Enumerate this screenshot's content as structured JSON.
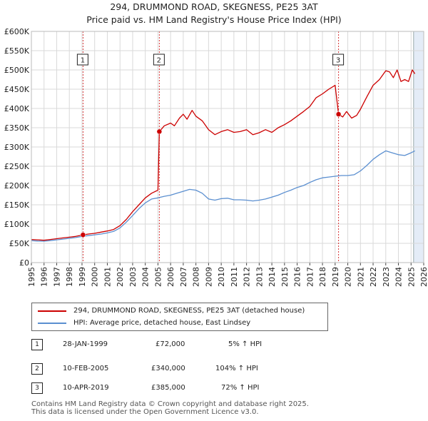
{
  "title_line1": "294, DRUMMOND ROAD, SKEGNESS, PE25 3AT",
  "title_line2": "Price paid vs. HM Land Registry's House Price Index (HPI)",
  "legend": {
    "series1": "294, DRUMMOND ROAD, SKEGNESS, PE25 3AT (detached house)",
    "series2": "HPI: Average price, detached house, East Lindsey"
  },
  "colors": {
    "property": "#cc0000",
    "hpi": "#5b8fd0",
    "grid": "#d9d9d9",
    "highlight": "#e4ecf7"
  },
  "transactions": [
    {
      "num": "1",
      "date": "28-JAN-1999",
      "price": "£72,000",
      "hpi": "5% ↑ HPI"
    },
    {
      "num": "2",
      "date": "10-FEB-2005",
      "price": "£340,000",
      "hpi": "104% ↑ HPI"
    },
    {
      "num": "3",
      "date": "10-APR-2019",
      "price": "£385,000",
      "hpi": "72% ↑ HPI"
    }
  ],
  "footer_line1": "Contains HM Land Registry data © Crown copyright and database right 2025.",
  "footer_line2": "This data is licensed under the Open Government Licence v3.0.",
  "chart_data": {
    "type": "line",
    "title": "294, DRUMMOND ROAD, SKEGNESS, PE25 3AT — Price paid vs. HM Land Registry's House Price Index (HPI)",
    "xlim": [
      1995,
      2026
    ],
    "ylim": [
      0,
      600000
    ],
    "x_ticks": [
      "1995",
      "1996",
      "1997",
      "1998",
      "1999",
      "2000",
      "2001",
      "2002",
      "2003",
      "2004",
      "2005",
      "2006",
      "2007",
      "2008",
      "2009",
      "2010",
      "2011",
      "2012",
      "2013",
      "2014",
      "2015",
      "2016",
      "2017",
      "2018",
      "2019",
      "2020",
      "2021",
      "2022",
      "2023",
      "2024",
      "2025",
      "2026"
    ],
    "y_ticks": [
      {
        "value": 0,
        "label": "£0"
      },
      {
        "value": 50000,
        "label": "£50K"
      },
      {
        "value": 100000,
        "label": "£100K"
      },
      {
        "value": 150000,
        "label": "£150K"
      },
      {
        "value": 200000,
        "label": "£200K"
      },
      {
        "value": 250000,
        "label": "£250K"
      },
      {
        "value": 300000,
        "label": "£300K"
      },
      {
        "value": 350000,
        "label": "£350K"
      },
      {
        "value": 400000,
        "label": "£400K"
      },
      {
        "value": 450000,
        "label": "£450K"
      },
      {
        "value": 500000,
        "label": "£500K"
      },
      {
        "value": 550000,
        "label": "£550K"
      },
      {
        "value": 600000,
        "label": "£600K"
      }
    ],
    "highlight_from": 2025.2,
    "markers": [
      {
        "label": "1",
        "x": 1999.08,
        "y": 72000
      },
      {
        "label": "2",
        "x": 2005.11,
        "y": 340000
      },
      {
        "label": "3",
        "x": 2019.27,
        "y": 385000
      }
    ],
    "series": [
      {
        "name": "294, DRUMMOND ROAD, SKEGNESS, PE25 3AT (detached house)",
        "color": "#cc0000",
        "points": [
          [
            1995.0,
            60000
          ],
          [
            1995.5,
            59000
          ],
          [
            1996.0,
            58000
          ],
          [
            1996.5,
            60000
          ],
          [
            1997.0,
            62000
          ],
          [
            1997.5,
            64000
          ],
          [
            1998.0,
            66000
          ],
          [
            1998.5,
            68000
          ],
          [
            1999.08,
            72000
          ],
          [
            1999.5,
            74000
          ],
          [
            2000.0,
            76000
          ],
          [
            2000.5,
            79000
          ],
          [
            2001.0,
            82000
          ],
          [
            2001.5,
            86000
          ],
          [
            2002.0,
            96000
          ],
          [
            2002.5,
            112000
          ],
          [
            2003.0,
            132000
          ],
          [
            2003.5,
            150000
          ],
          [
            2004.0,
            168000
          ],
          [
            2004.5,
            180000
          ],
          [
            2005.0,
            188000
          ],
          [
            2005.11,
            340000
          ],
          [
            2005.5,
            355000
          ],
          [
            2006.0,
            362000
          ],
          [
            2006.3,
            355000
          ],
          [
            2006.7,
            375000
          ],
          [
            2007.0,
            385000
          ],
          [
            2007.3,
            372000
          ],
          [
            2007.7,
            395000
          ],
          [
            2008.0,
            380000
          ],
          [
            2008.5,
            368000
          ],
          [
            2009.0,
            345000
          ],
          [
            2009.5,
            332000
          ],
          [
            2010.0,
            340000
          ],
          [
            2010.5,
            345000
          ],
          [
            2011.0,
            338000
          ],
          [
            2011.5,
            340000
          ],
          [
            2012.0,
            345000
          ],
          [
            2012.5,
            332000
          ],
          [
            2013.0,
            337000
          ],
          [
            2013.5,
            345000
          ],
          [
            2014.0,
            338000
          ],
          [
            2014.5,
            350000
          ],
          [
            2015.0,
            358000
          ],
          [
            2015.5,
            368000
          ],
          [
            2016.0,
            380000
          ],
          [
            2016.5,
            392000
          ],
          [
            2017.0,
            405000
          ],
          [
            2017.5,
            428000
          ],
          [
            2018.0,
            438000
          ],
          [
            2018.5,
            450000
          ],
          [
            2019.0,
            460000
          ],
          [
            2019.27,
            385000
          ],
          [
            2019.6,
            378000
          ],
          [
            2019.9,
            392000
          ],
          [
            2020.3,
            375000
          ],
          [
            2020.7,
            382000
          ],
          [
            2021.0,
            398000
          ],
          [
            2021.5,
            430000
          ],
          [
            2022.0,
            460000
          ],
          [
            2022.5,
            475000
          ],
          [
            2023.0,
            498000
          ],
          [
            2023.3,
            495000
          ],
          [
            2023.6,
            480000
          ],
          [
            2023.9,
            500000
          ],
          [
            2024.2,
            470000
          ],
          [
            2024.5,
            475000
          ],
          [
            2024.8,
            470000
          ],
          [
            2025.1,
            500000
          ],
          [
            2025.3,
            490000
          ]
        ]
      },
      {
        "name": "HPI: Average price, detached house, East Lindsey",
        "color": "#5b8fd0",
        "points": [
          [
            1995.0,
            57000
          ],
          [
            1995.5,
            56000
          ],
          [
            1996.0,
            55500
          ],
          [
            1996.5,
            57000
          ],
          [
            1997.0,
            59000
          ],
          [
            1997.5,
            61000
          ],
          [
            1998.0,
            63000
          ],
          [
            1998.5,
            65000
          ],
          [
            1999.0,
            68000
          ],
          [
            1999.5,
            70000
          ],
          [
            2000.0,
            72000
          ],
          [
            2000.5,
            74000
          ],
          [
            2001.0,
            77000
          ],
          [
            2001.5,
            81000
          ],
          [
            2002.0,
            90000
          ],
          [
            2002.5,
            105000
          ],
          [
            2003.0,
            122000
          ],
          [
            2003.5,
            140000
          ],
          [
            2004.0,
            155000
          ],
          [
            2004.5,
            165000
          ],
          [
            2005.0,
            168000
          ],
          [
            2005.5,
            172000
          ],
          [
            2006.0,
            175000
          ],
          [
            2006.5,
            180000
          ],
          [
            2007.0,
            185000
          ],
          [
            2007.5,
            190000
          ],
          [
            2008.0,
            188000
          ],
          [
            2008.5,
            180000
          ],
          [
            2009.0,
            165000
          ],
          [
            2009.5,
            162000
          ],
          [
            2010.0,
            166000
          ],
          [
            2010.5,
            167000
          ],
          [
            2011.0,
            163000
          ],
          [
            2011.5,
            163000
          ],
          [
            2012.0,
            162000
          ],
          [
            2012.5,
            160000
          ],
          [
            2013.0,
            162000
          ],
          [
            2013.5,
            165000
          ],
          [
            2014.0,
            170000
          ],
          [
            2014.5,
            175000
          ],
          [
            2015.0,
            182000
          ],
          [
            2015.5,
            188000
          ],
          [
            2016.0,
            195000
          ],
          [
            2016.5,
            200000
          ],
          [
            2017.0,
            208000
          ],
          [
            2017.5,
            215000
          ],
          [
            2018.0,
            220000
          ],
          [
            2018.5,
            222000
          ],
          [
            2019.0,
            224000
          ],
          [
            2019.5,
            226000
          ],
          [
            2020.0,
            226000
          ],
          [
            2020.5,
            228000
          ],
          [
            2021.0,
            238000
          ],
          [
            2021.5,
            252000
          ],
          [
            2022.0,
            268000
          ],
          [
            2022.5,
            280000
          ],
          [
            2023.0,
            290000
          ],
          [
            2023.5,
            285000
          ],
          [
            2024.0,
            280000
          ],
          [
            2024.5,
            278000
          ],
          [
            2025.0,
            285000
          ],
          [
            2025.3,
            290000
          ]
        ]
      }
    ]
  }
}
